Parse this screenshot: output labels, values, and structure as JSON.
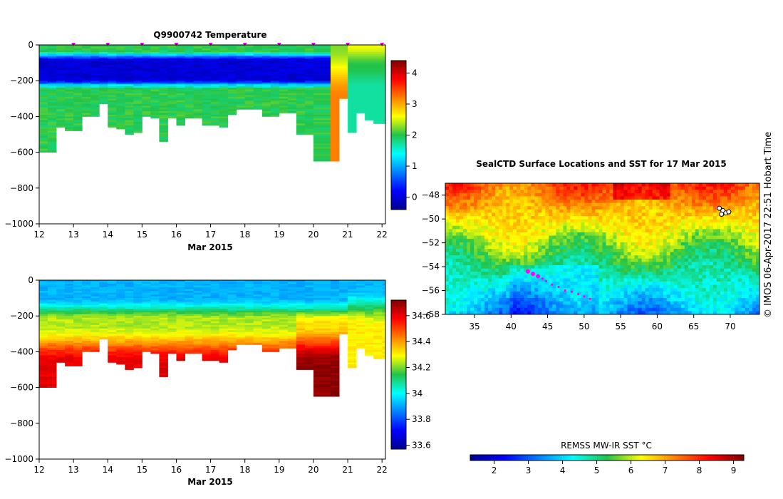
{
  "chart_data": [
    {
      "id": "temperature",
      "type": "heatmap",
      "title": "Q9900742  Temperature",
      "xlabel": "Mar 2015",
      "ylabel": "",
      "xlim": [
        12,
        22.1
      ],
      "ylim": [
        -1000,
        0
      ],
      "xticks": [
        "12",
        "13",
        "14",
        "15",
        "16",
        "17",
        "18",
        "19",
        "20",
        "21",
        "22"
      ],
      "yticks": [
        "0",
        "−200",
        "−400",
        "−600",
        "−800",
        "−1000"
      ],
      "colorbar": {
        "range": [
          -0.4,
          4.4
        ],
        "ticks": [
          "0",
          "1",
          "2",
          "3",
          "4"
        ]
      },
      "profile_markers": [
        13,
        14,
        15,
        16,
        17,
        18,
        19,
        20,
        21,
        22
      ],
      "profiles": [
        {
          "t": 12.0,
          "depth": 600
        },
        {
          "t": 12.25,
          "depth": 600
        },
        {
          "t": 12.5,
          "depth": 460
        },
        {
          "t": 12.75,
          "depth": 480
        },
        {
          "t": 13.0,
          "depth": 480
        },
        {
          "t": 13.25,
          "depth": 400
        },
        {
          "t": 13.5,
          "depth": 400
        },
        {
          "t": 13.75,
          "depth": 330
        },
        {
          "t": 14.0,
          "depth": 460
        },
        {
          "t": 14.25,
          "depth": 470
        },
        {
          "t": 14.5,
          "depth": 500
        },
        {
          "t": 14.75,
          "depth": 490
        },
        {
          "t": 15.0,
          "depth": 400
        },
        {
          "t": 15.25,
          "depth": 410
        },
        {
          "t": 15.5,
          "depth": 540
        },
        {
          "t": 15.75,
          "depth": 410
        },
        {
          "t": 16.0,
          "depth": 450
        },
        {
          "t": 16.25,
          "depth": 410
        },
        {
          "t": 16.5,
          "depth": 410
        },
        {
          "t": 16.75,
          "depth": 450
        },
        {
          "t": 17.0,
          "depth": 450
        },
        {
          "t": 17.25,
          "depth": 460
        },
        {
          "t": 17.5,
          "depth": 390
        },
        {
          "t": 17.75,
          "depth": 360
        },
        {
          "t": 18.0,
          "depth": 360
        },
        {
          "t": 18.25,
          "depth": 360
        },
        {
          "t": 18.5,
          "depth": 400
        },
        {
          "t": 18.75,
          "depth": 400
        },
        {
          "t": 19.0,
          "depth": 380
        },
        {
          "t": 19.25,
          "depth": 380
        },
        {
          "t": 19.5,
          "depth": 500
        },
        {
          "t": 19.75,
          "depth": 500
        },
        {
          "t": 20.0,
          "depth": 650
        },
        {
          "t": 20.5,
          "depth": 650
        },
        {
          "t": 20.75,
          "depth": 300
        },
        {
          "t": 21.0,
          "depth": 490
        },
        {
          "t": 21.25,
          "depth": 380
        },
        {
          "t": 21.5,
          "depth": 420
        },
        {
          "t": 21.75,
          "depth": 440
        },
        {
          "t": 22.0,
          "depth": 440
        }
      ]
    },
    {
      "id": "salinity",
      "type": "heatmap",
      "title": "",
      "xlabel": "Mar 2015",
      "ylabel": "",
      "xlim": [
        12,
        22.1
      ],
      "ylim": [
        -1000,
        0
      ],
      "xticks": [
        "12",
        "13",
        "14",
        "15",
        "16",
        "17",
        "18",
        "19",
        "20",
        "21",
        "22"
      ],
      "yticks": [
        "0",
        "−200",
        "−400",
        "−600",
        "−800",
        "−1000"
      ],
      "colorbar": {
        "range": [
          33.57,
          34.72
        ],
        "ticks": [
          "33.6",
          "33.8",
          "34",
          "34.2",
          "34.4",
          "34.6"
        ]
      }
    },
    {
      "id": "sst_map",
      "type": "heatmap",
      "title": "SealCTD Surface Locations and SST for 17 Mar 2015",
      "xlim": [
        31,
        74
      ],
      "ylim": [
        -58,
        -47
      ],
      "xticks": [
        "35",
        "40",
        "45",
        "50",
        "55",
        "60",
        "65",
        "70"
      ],
      "yticks": [
        "−48",
        "−50",
        "−52",
        "−54",
        "−56",
        "−58"
      ],
      "colorbar": {
        "label": "REMSS MW-IR SST °C",
        "range": [
          1.3,
          9.3
        ],
        "ticks": [
          "2",
          "3",
          "4",
          "5",
          "6",
          "7",
          "8",
          "9"
        ]
      },
      "track": [
        {
          "lon": 42.3,
          "lat": -54.4
        },
        {
          "lon": 43.0,
          "lat": -54.6
        },
        {
          "lon": 43.7,
          "lat": -54.8
        },
        {
          "lon": 44.3,
          "lat": -55.0
        },
        {
          "lon": 44.8,
          "lat": -55.2
        },
        {
          "lon": 45.6,
          "lat": -55.5
        },
        {
          "lon": 46.5,
          "lat": -55.7
        },
        {
          "lon": 47.4,
          "lat": -56.0
        },
        {
          "lon": 48.3,
          "lat": -56.1
        },
        {
          "lon": 49.2,
          "lat": -56.3
        },
        {
          "lon": 50.0,
          "lat": -56.5
        },
        {
          "lon": 50.8,
          "lat": -56.7
        }
      ],
      "station_points": [
        {
          "lon": 68.5,
          "lat": -49.1
        },
        {
          "lon": 69.0,
          "lat": -49.3
        },
        {
          "lon": 69.4,
          "lat": -49.5
        },
        {
          "lon": 68.8,
          "lat": -49.6
        },
        {
          "lon": 69.8,
          "lat": -49.4
        }
      ]
    }
  ],
  "credit": "© IMOS 06-Apr-2017 22:51 Hobart Time"
}
